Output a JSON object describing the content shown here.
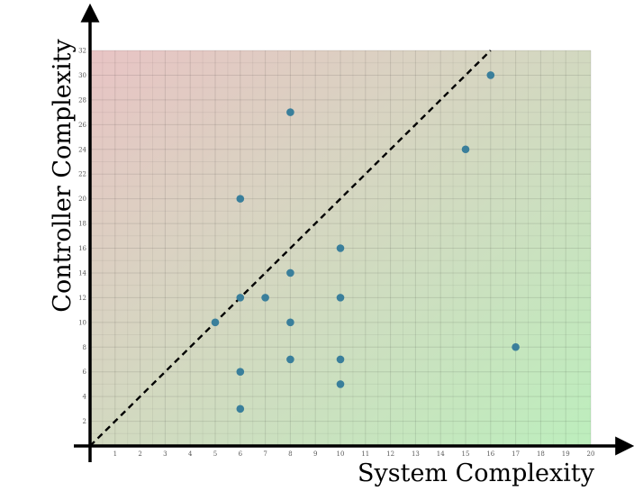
{
  "chart_data": {
    "type": "scatter",
    "xlabel": "System Complexity",
    "ylabel": "Controller Complexity",
    "xlim": [
      0,
      20
    ],
    "ylim": [
      0,
      32
    ],
    "x_ticks": [
      1,
      2,
      3,
      4,
      5,
      6,
      7,
      8,
      9,
      10,
      11,
      12,
      13,
      14,
      15,
      16,
      17,
      18,
      19,
      20
    ],
    "y_ticks": [
      2,
      4,
      6,
      8,
      10,
      12,
      14,
      16,
      18,
      20,
      22,
      24,
      26,
      28,
      30,
      32
    ],
    "grid": true,
    "background_gradient": {
      "top_left": "#e8c4c4",
      "bottom_right": "#bdeebd"
    },
    "point_color": "#3a7f9b",
    "reference_line": {
      "type": "diagonal",
      "from": [
        0,
        0
      ],
      "to": [
        16,
        32
      ],
      "style": "dashed",
      "color": "#000000"
    },
    "points": [
      {
        "x": 5,
        "y": 10
      },
      {
        "x": 6,
        "y": 3
      },
      {
        "x": 6,
        "y": 6
      },
      {
        "x": 6,
        "y": 12
      },
      {
        "x": 6,
        "y": 20
      },
      {
        "x": 7,
        "y": 12
      },
      {
        "x": 8,
        "y": 7
      },
      {
        "x": 8,
        "y": 10
      },
      {
        "x": 8,
        "y": 14
      },
      {
        "x": 8,
        "y": 27
      },
      {
        "x": 10,
        "y": 5
      },
      {
        "x": 10,
        "y": 7
      },
      {
        "x": 10,
        "y": 12
      },
      {
        "x": 10,
        "y": 16
      },
      {
        "x": 15,
        "y": 24
      },
      {
        "x": 16,
        "y": 30
      },
      {
        "x": 17,
        "y": 8
      }
    ]
  }
}
